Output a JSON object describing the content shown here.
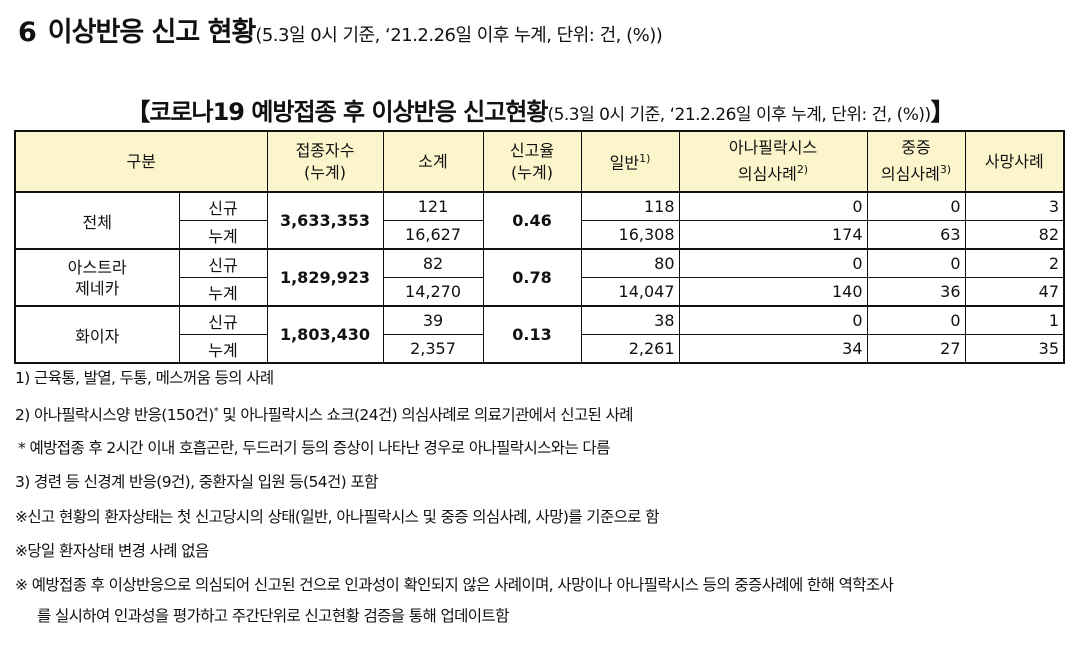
{
  "heading": {
    "number": "6",
    "title": "이상반응 신고 현황",
    "subtitle": "(5.3일 0시 기준, ‘21.2.26일 이후 누계, 단위: 건, (%))"
  },
  "table_title": {
    "open": "【",
    "title": "코로나19 예방접종 후 이상반응 신고현황",
    "subtitle": "(5.3일 0시 기준, ‘21.2.26일 이후 누계, 단위: 건, (%))",
    "close": "】"
  },
  "columns": {
    "group": "구분",
    "vaccinated_1": "접종자수",
    "vaccinated_2": "(누계)",
    "subtotal": "소계",
    "rate_1": "신고율",
    "rate_2": "(누계)",
    "general": "일반",
    "general_sup": "1)",
    "anaph_1": "아나필락시스",
    "anaph_2": "의심사례",
    "anaph_sup": "2)",
    "severe_1": "중증",
    "severe_2": "의심사례",
    "severe_sup": "3)",
    "death": "사망사례"
  },
  "groups": [
    {
      "name": "전체",
      "vaccinated": "3,633,353",
      "rate": "0.46",
      "rows": [
        {
          "type": "신규",
          "subtotal": "121",
          "general": "118",
          "anaph": "0",
          "severe": "0",
          "death": "3"
        },
        {
          "type": "누계",
          "subtotal": "16,627",
          "general": "16,308",
          "anaph": "174",
          "severe": "63",
          "death": "82"
        }
      ]
    },
    {
      "name": "아스트라\n제네카",
      "vaccinated": "1,829,923",
      "rate": "0.78",
      "rows": [
        {
          "type": "신규",
          "subtotal": "82",
          "general": "80",
          "anaph": "0",
          "severe": "0",
          "death": "2"
        },
        {
          "type": "누계",
          "subtotal": "14,270",
          "general": "14,047",
          "anaph": "140",
          "severe": "36",
          "death": "47"
        }
      ]
    },
    {
      "name": "화이자",
      "vaccinated": "1,803,430",
      "rate": "0.13",
      "rows": [
        {
          "type": "신규",
          "subtotal": "39",
          "general": "38",
          "anaph": "0",
          "severe": "0",
          "death": "1"
        },
        {
          "type": "누계",
          "subtotal": "2,357",
          "general": "2,261",
          "anaph": "34",
          "severe": "27",
          "death": "35"
        }
      ]
    }
  ],
  "notes": [
    "1) 근육통, 발열, 두통, 메스꺼움 등의 사례",
    "2) 아나필락시스양 반응(150건)",
    "* 예방접종 후 2시간 이내 호흡곤란, 두드러기 등의 증상이 나타난 경우로 아나필락시스와는 다름",
    "3) 경련 등 신경계 반응(9건), 중환자실 입원 등(54건) 포함",
    "※신고 현황의 환자상태는 첫 신고당시의 상태(일반, 아나필락시스 및 중증 의심사례, 사망)를 기준으로 함",
    "※당일 환자상태 변경 사례 없음",
    "※ 예방접종 후 이상반응으로 의심되어 신고된 건으로 인과성이 확인되지 않은 사례이며, 사망이나 아나필락시스 등의 중증사례에 한해 역학조사",
    "를 실시하여 인과성을 평가하고 주간단위로 신고현황 검증을 통해 업데이트함"
  ],
  "note2_sup": "*",
  "note2_tail": " 및 아나필락시스 쇼크(24건) 의심사례로 의료기관에서 신고된 사례"
}
